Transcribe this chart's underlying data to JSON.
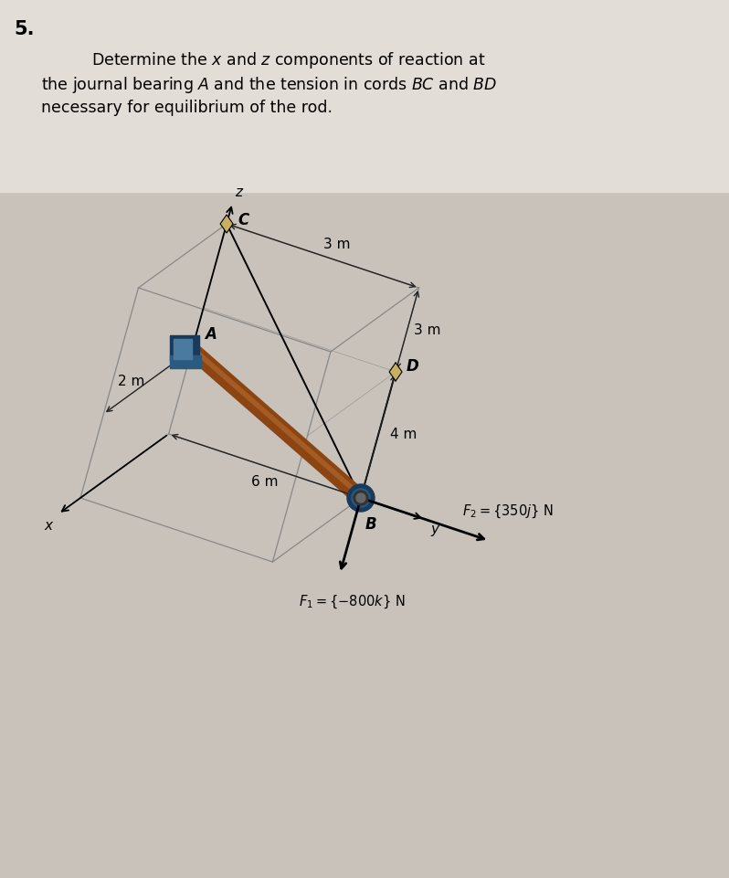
{
  "problem_number": "5.",
  "bg_top": "#e2ddd6",
  "bg_bottom": "#c8c2ba",
  "title_line1": "Determine the $x$ and $z$ components of reaction at",
  "title_line2": "the journal bearing $A$ and the tension in cords $BC$ and $BD$",
  "title_line3": "necessary for equilibrium of the rod.",
  "label_3m_top": "3 m",
  "label_3m_right": "3 m",
  "label_2m": "2 m",
  "label_6m": "6 m",
  "label_4m": "4 m",
  "label_A": "A",
  "label_B": "B",
  "label_C": "C",
  "label_D": "D",
  "label_x": "x",
  "label_y": "y",
  "label_z": "z",
  "F1_label": "$F_1 = \\{-800k\\}$ N",
  "F2_label": "$F_2 = \\{350j\\}$ N",
  "rod_color": "#8B4513",
  "rod_highlight": "#c47a3a",
  "bearing_dark": "#1a3a5c",
  "bearing_mid": "#2a5a80",
  "bearing_light": "#4a7aa0",
  "grid_color": "#888888",
  "dim_color": "#222222"
}
